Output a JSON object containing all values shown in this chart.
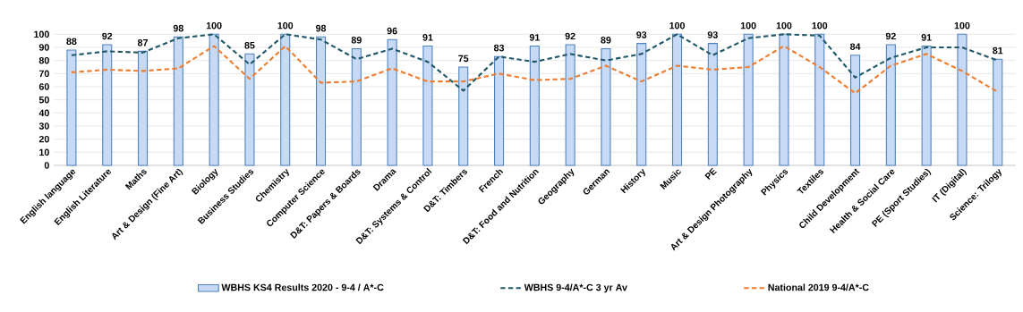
{
  "chart_data": {
    "type": "bar",
    "categories": [
      "English language",
      "English Literature",
      "Maths",
      "Art & Design (Fine Art)",
      "Biology",
      "Business Studies",
      "Chemistry",
      "Computer Science",
      "D&T: Papers & Boards",
      "Drama",
      "D&T: Systems & Control",
      "D&T: Timbers",
      "French",
      "D&T: Food and Nutrition",
      "Geography",
      "German",
      "History",
      "Music",
      "PE",
      "Art & Design Photography",
      "Physics",
      "Textiles",
      "Child Development",
      "Health & Social Care",
      "PE (Sport Studies)",
      "IT (Digital)",
      "Science: Trilogy"
    ],
    "series": [
      {
        "name": "WBHS KS4 Results 2020 - 9-4 / A*-C",
        "color": "#c6d9f5",
        "values": [
          88,
          92,
          87,
          98,
          100,
          85,
          100,
          98,
          89,
          96,
          91,
          75,
          83,
          91,
          92,
          89,
          93,
          100,
          93,
          100,
          100,
          100,
          84,
          92,
          91,
          100,
          81
        ],
        "value_labels": [
          "88",
          "92",
          "87",
          "98",
          "100",
          "85",
          "100",
          "98",
          "89",
          "96",
          "91",
          "75",
          "83",
          "91",
          "92",
          "89",
          "93",
          "100",
          "93",
          "100",
          "100",
          "100",
          "84",
          "92",
          "91",
          "100",
          "81"
        ]
      },
      {
        "name": "WBHS 9-4/A*-C 3 yr Av",
        "type": "line",
        "color": "#215968",
        "line_style": "dashed",
        "values": [
          84,
          87,
          86,
          97,
          100,
          77,
          100,
          96,
          81,
          89,
          79,
          57,
          83,
          79,
          85,
          80,
          85,
          100,
          84,
          97,
          100,
          99,
          67,
          82,
          90,
          90,
          80
        ]
      },
      {
        "name": "National 2019 9-4/A*-C",
        "type": "line",
        "color": "#ed7d31",
        "line_style": "dashed",
        "values": [
          71,
          73,
          72,
          74,
          91,
          66,
          91,
          63,
          64,
          74,
          64,
          64,
          70,
          65,
          66,
          76,
          64,
          76,
          73,
          75,
          91,
          75,
          55,
          76,
          85,
          72,
          56
        ]
      }
    ],
    "ylim": [
      0,
      100
    ],
    "yticks": [
      0,
      10,
      20,
      30,
      40,
      50,
      60,
      70,
      80,
      90,
      100
    ],
    "grid": "y",
    "legend": "bottom",
    "marker": "none"
  }
}
